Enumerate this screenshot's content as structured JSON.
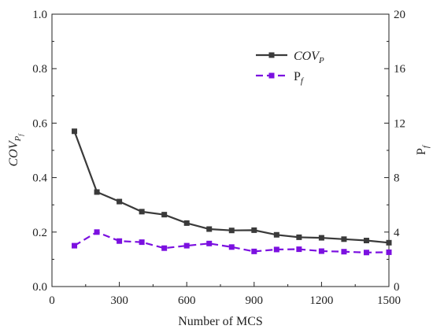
{
  "chart_data": {
    "type": "line",
    "xlabel": "Number of MCS",
    "ylabel_left": {
      "base": "COV",
      "sub": "P",
      "subsub": "f"
    },
    "ylabel_right": {
      "base": "P",
      "sub": "f"
    },
    "xlim": [
      0,
      1500
    ],
    "ylim_left": [
      0.0,
      1.0
    ],
    "ylim_right": [
      0,
      20
    ],
    "x_ticks": [
      "0",
      "300",
      "600",
      "900",
      "1200",
      "1500"
    ],
    "y_left_ticks": [
      "0.0",
      "0.2",
      "0.4",
      "0.6",
      "0.8",
      "1.0"
    ],
    "y_right_ticks": [
      "0",
      "4",
      "8",
      "12",
      "16",
      "20"
    ],
    "legend_position": "top-right",
    "grid": false,
    "x": [
      100,
      200,
      300,
      400,
      500,
      600,
      700,
      800,
      900,
      1000,
      1100,
      1200,
      1300,
      1400,
      1500
    ],
    "series": [
      {
        "name": "COV_P",
        "legend": {
          "base": "COV",
          "sub": "P"
        },
        "axis": "left",
        "color": "#3a3a3a",
        "dashed": false,
        "values": [
          0.57,
          0.347,
          0.312,
          0.275,
          0.264,
          0.233,
          0.211,
          0.206,
          0.207,
          0.19,
          0.181,
          0.179,
          0.174,
          0.169,
          0.161
        ]
      },
      {
        "name": "P_f",
        "legend": {
          "base": "P",
          "sub": "f"
        },
        "axis": "right",
        "color": "#7b10e0",
        "dashed": true,
        "values": [
          3.0,
          4.0,
          3.34,
          3.26,
          2.82,
          3.0,
          3.16,
          2.9,
          2.58,
          2.72,
          2.74,
          2.6,
          2.56,
          2.5,
          2.52
        ]
      }
    ]
  }
}
